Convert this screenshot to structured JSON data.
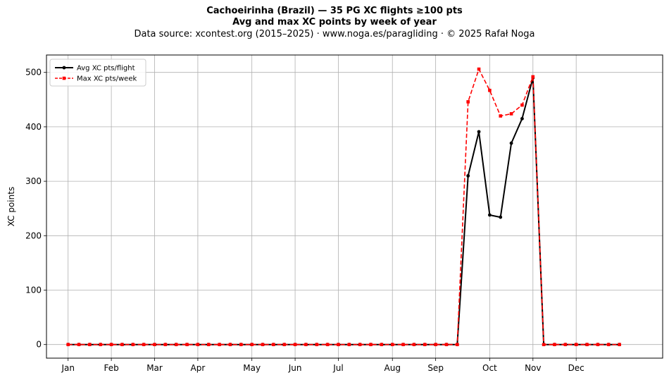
{
  "title": {
    "line1": "Cachoeirinha (Brazil)  —  35 PG XC flights ≥100 pts",
    "line2": "Avg and max XC points by week of year",
    "line3": "Data source: xcontest.org (2015–2025)  ·  www.noga.es/paragliding  ·  © 2025 Rafał Noga"
  },
  "chart_data": {
    "type": "line",
    "ylabel": "XC points",
    "xlabel": "",
    "xlim": [
      -2,
      55
    ],
    "ylim": [
      -25,
      532
    ],
    "grid": true,
    "legend_position": "top-left",
    "x_ticks": [
      {
        "label": "Jan",
        "week": 0
      },
      {
        "label": "Feb",
        "week": 4
      },
      {
        "label": "Mar",
        "week": 8
      },
      {
        "label": "Apr",
        "week": 12
      },
      {
        "label": "May",
        "week": 17
      },
      {
        "label": "Jun",
        "week": 21
      },
      {
        "label": "Jul",
        "week": 25
      },
      {
        "label": "Aug",
        "week": 30
      },
      {
        "label": "Sep",
        "week": 34
      },
      {
        "label": "Oct",
        "week": 39
      },
      {
        "label": "Nov",
        "week": 43
      },
      {
        "label": "Dec",
        "week": 47
      }
    ],
    "y_ticks": [
      0,
      100,
      200,
      300,
      400,
      500
    ],
    "x": [
      0,
      1,
      2,
      3,
      4,
      5,
      6,
      7,
      8,
      9,
      10,
      11,
      12,
      13,
      14,
      15,
      16,
      17,
      18,
      19,
      20,
      21,
      22,
      23,
      24,
      25,
      26,
      27,
      28,
      29,
      30,
      31,
      32,
      33,
      34,
      35,
      36,
      37,
      38,
      39,
      40,
      41,
      42,
      43,
      44,
      45,
      46,
      47,
      48,
      49,
      50,
      51
    ],
    "series": [
      {
        "name": "Avg XC pts/flight",
        "color": "#000000",
        "style": "solid",
        "marker": "circle",
        "values": [
          0,
          0,
          0,
          0,
          0,
          0,
          0,
          0,
          0,
          0,
          0,
          0,
          0,
          0,
          0,
          0,
          0,
          0,
          0,
          0,
          0,
          0,
          0,
          0,
          0,
          0,
          0,
          0,
          0,
          0,
          0,
          0,
          0,
          0,
          0,
          0,
          0,
          310,
          391,
          238,
          234,
          370,
          415,
          490,
          0,
          0,
          0,
          0,
          0,
          0,
          0,
          0
        ]
      },
      {
        "name": "Max XC pts/week",
        "color": "#ff0000",
        "style": "dashed",
        "marker": "square",
        "values": [
          0,
          0,
          0,
          0,
          0,
          0,
          0,
          0,
          0,
          0,
          0,
          0,
          0,
          0,
          0,
          0,
          0,
          0,
          0,
          0,
          0,
          0,
          0,
          0,
          0,
          0,
          0,
          0,
          0,
          0,
          0,
          0,
          0,
          0,
          0,
          0,
          0,
          446,
          506,
          467,
          420,
          424,
          440,
          492,
          0,
          0,
          0,
          0,
          0,
          0,
          0,
          0
        ]
      }
    ]
  }
}
